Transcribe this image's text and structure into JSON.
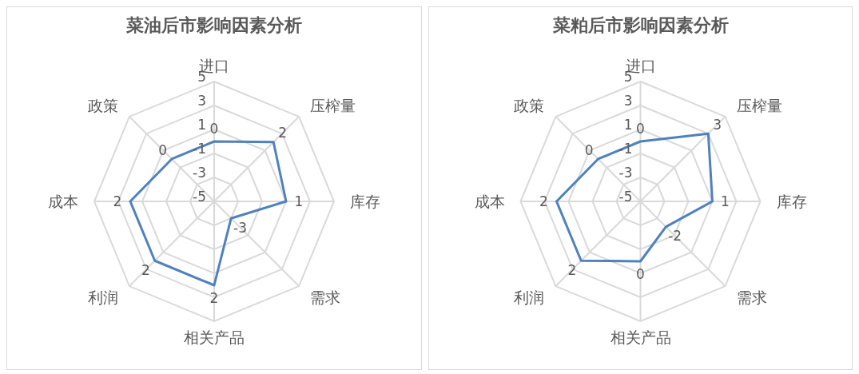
{
  "chart_data": [
    {
      "type": "radar",
      "title": "菜油后市影响因素分析",
      "categories": [
        "进口",
        "压榨量",
        "库存",
        "需求",
        "相关产品",
        "利润",
        "成本",
        "政策"
      ],
      "series": [
        {
          "color": "#4f81bd",
          "values": [
            0,
            2,
            1,
            -3,
            2,
            2,
            2,
            0
          ]
        }
      ],
      "ylim": [
        -5,
        5
      ],
      "yticks": [
        -5,
        -3,
        -1,
        1,
        3,
        5
      ],
      "grid": true,
      "data_labels": true,
      "legend": false
    },
    {
      "type": "radar",
      "title": "菜粕后市影响因素分析",
      "categories": [
        "进口",
        "压榨量",
        "库存",
        "需求",
        "相关产品",
        "利润",
        "成本",
        "政策"
      ],
      "series": [
        {
          "color": "#4f81bd",
          "values": [
            0,
            3,
            1,
            -2,
            0,
            2,
            2,
            0
          ]
        }
      ],
      "ylim": [
        -5,
        5
      ],
      "yticks": [
        -5,
        -3,
        -1,
        1,
        3,
        5
      ],
      "grid": true,
      "data_labels": true,
      "legend": false
    }
  ]
}
